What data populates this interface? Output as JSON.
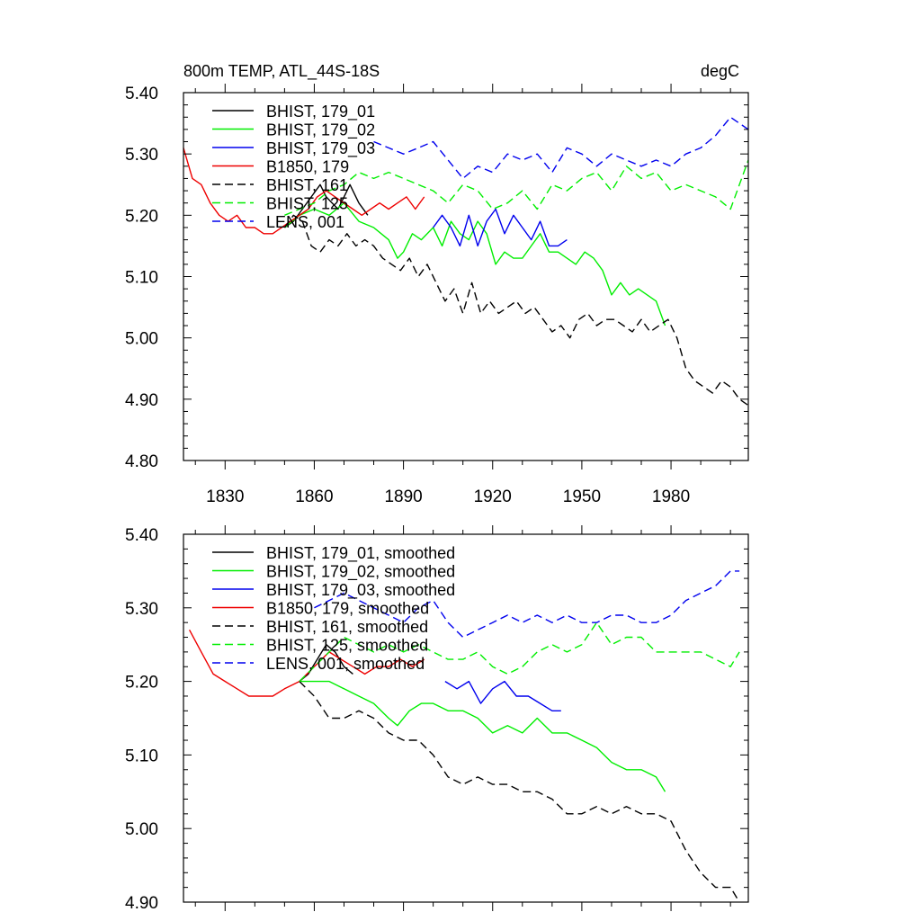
{
  "chart_data": [
    {
      "type": "line",
      "title": "800m TEMP, ATL_44S-18S",
      "units": "degC",
      "xlim": [
        1816,
        2006
      ],
      "ylim": [
        4.8,
        5.4
      ],
      "xticks": [
        1830,
        1860,
        1890,
        1920,
        1950,
        1980
      ],
      "xticklabels": [
        "1830",
        "1860",
        "1890",
        "1920",
        "1950",
        "1980"
      ],
      "yticks": [
        4.8,
        4.9,
        5.0,
        5.1,
        5.2,
        5.3,
        5.4
      ],
      "yticklabels": [
        "4.80",
        "4.90",
        "5.00",
        "5.10",
        "5.20",
        "5.30",
        "5.40"
      ],
      "legend_position": "top-left",
      "series": [
        {
          "name": "BHIST, 179_01",
          "color": "#000000",
          "dash": "solid",
          "x": [
            1850,
            1853,
            1856,
            1859,
            1862,
            1864,
            1866,
            1868,
            1870,
            1872,
            1875,
            1878
          ],
          "y": [
            5.18,
            5.19,
            5.21,
            5.23,
            5.25,
            5.23,
            5.22,
            5.21,
            5.23,
            5.25,
            5.22,
            5.2
          ]
        },
        {
          "name": "BHIST, 179_02",
          "color": "#00ee00",
          "dash": "solid",
          "x": [
            1850,
            1855,
            1860,
            1865,
            1870,
            1875,
            1880,
            1885,
            1888,
            1890,
            1893,
            1896,
            1900,
            1903,
            1906,
            1909,
            1912,
            1915,
            1918,
            1921,
            1924,
            1927,
            1930,
            1933,
            1936,
            1939,
            1942,
            1945,
            1948,
            1951,
            1954,
            1957,
            1960,
            1963,
            1966,
            1969,
            1972,
            1975,
            1978
          ],
          "y": [
            5.18,
            5.2,
            5.21,
            5.2,
            5.22,
            5.19,
            5.18,
            5.16,
            5.13,
            5.14,
            5.17,
            5.16,
            5.18,
            5.15,
            5.19,
            5.17,
            5.16,
            5.19,
            5.17,
            5.12,
            5.14,
            5.13,
            5.13,
            5.15,
            5.17,
            5.14,
            5.14,
            5.13,
            5.12,
            5.14,
            5.13,
            5.11,
            5.07,
            5.09,
            5.07,
            5.08,
            5.07,
            5.06,
            5.02
          ]
        },
        {
          "name": "BHIST, 179_03",
          "color": "#0000ee",
          "dash": "solid",
          "x": [
            1900,
            1903,
            1906,
            1909,
            1912,
            1915,
            1918,
            1921,
            1924,
            1927,
            1930,
            1933,
            1936,
            1939,
            1942,
            1945
          ],
          "y": [
            5.18,
            5.2,
            5.18,
            5.15,
            5.2,
            5.15,
            5.19,
            5.21,
            5.17,
            5.2,
            5.18,
            5.16,
            5.19,
            5.15,
            5.15,
            5.16
          ]
        },
        {
          "name": "B1850, 179",
          "color": "#ee0000",
          "dash": "solid",
          "x": [
            1816,
            1819,
            1822,
            1825,
            1828,
            1831,
            1834,
            1837,
            1840,
            1843,
            1846,
            1849,
            1852,
            1855,
            1858,
            1861,
            1864,
            1867,
            1870,
            1873,
            1876,
            1879,
            1882,
            1885,
            1888,
            1891,
            1894,
            1897
          ],
          "y": [
            5.31,
            5.26,
            5.25,
            5.22,
            5.2,
            5.19,
            5.2,
            5.18,
            5.18,
            5.17,
            5.17,
            5.18,
            5.19,
            5.2,
            5.21,
            5.23,
            5.24,
            5.23,
            5.22,
            5.21,
            5.2,
            5.21,
            5.22,
            5.21,
            5.22,
            5.23,
            5.21,
            5.23
          ]
        },
        {
          "name": "BHIST, 161",
          "color": "#000000",
          "dash": "dash",
          "x": [
            1850,
            1853,
            1856,
            1859,
            1862,
            1865,
            1868,
            1871,
            1874,
            1877,
            1880,
            1883,
            1886,
            1889,
            1892,
            1895,
            1898,
            1901,
            1904,
            1907,
            1910,
            1913,
            1916,
            1919,
            1922,
            1925,
            1928,
            1931,
            1934,
            1937,
            1940,
            1943,
            1946,
            1949,
            1952,
            1955,
            1958,
            1961,
            1964,
            1967,
            1970,
            1973,
            1976,
            1979,
            1982,
            1985,
            1988,
            1991,
            1994,
            1997,
            2000,
            2003,
            2006
          ],
          "y": [
            5.18,
            5.2,
            5.19,
            5.15,
            5.14,
            5.16,
            5.15,
            5.17,
            5.15,
            5.16,
            5.15,
            5.13,
            5.12,
            5.11,
            5.13,
            5.1,
            5.12,
            5.09,
            5.06,
            5.08,
            5.04,
            5.09,
            5.04,
            5.06,
            5.04,
            5.05,
            5.06,
            5.04,
            5.05,
            5.03,
            5.01,
            5.02,
            5.0,
            5.03,
            5.04,
            5.02,
            5.03,
            5.03,
            5.02,
            5.01,
            5.03,
            5.01,
            5.02,
            5.03,
            5.0,
            4.95,
            4.93,
            4.92,
            4.91,
            4.93,
            4.92,
            4.9,
            4.89
          ]
        },
        {
          "name": "BHIST, 125",
          "color": "#00ee00",
          "dash": "dash",
          "x": [
            1850,
            1855,
            1860,
            1865,
            1870,
            1875,
            1880,
            1885,
            1890,
            1895,
            1900,
            1905,
            1910,
            1915,
            1920,
            1925,
            1930,
            1935,
            1940,
            1945,
            1950,
            1955,
            1960,
            1965,
            1970,
            1975,
            1980,
            1985,
            1990,
            1995,
            2000,
            2003,
            2006
          ],
          "y": [
            5.2,
            5.21,
            5.22,
            5.24,
            5.25,
            5.27,
            5.26,
            5.27,
            5.26,
            5.25,
            5.24,
            5.22,
            5.25,
            5.24,
            5.21,
            5.22,
            5.24,
            5.21,
            5.25,
            5.24,
            5.26,
            5.27,
            5.24,
            5.28,
            5.26,
            5.27,
            5.24,
            5.25,
            5.24,
            5.23,
            5.21,
            5.25,
            5.29
          ]
        },
        {
          "name": "LENS, 001",
          "color": "#0000ee",
          "dash": "dash",
          "x": [
            1880,
            1885,
            1890,
            1895,
            1900,
            1905,
            1910,
            1915,
            1920,
            1925,
            1930,
            1935,
            1940,
            1945,
            1950,
            1955,
            1960,
            1965,
            1970,
            1975,
            1980,
            1985,
            1990,
            1995,
            2000,
            2003,
            2006
          ],
          "y": [
            5.32,
            5.31,
            5.3,
            5.31,
            5.32,
            5.29,
            5.26,
            5.28,
            5.27,
            5.3,
            5.29,
            5.3,
            5.27,
            5.31,
            5.3,
            5.28,
            5.3,
            5.29,
            5.28,
            5.29,
            5.28,
            5.3,
            5.31,
            5.33,
            5.36,
            5.35,
            5.34
          ]
        }
      ]
    },
    {
      "type": "line",
      "xlim": [
        1816,
        2006
      ],
      "ylim": [
        4.9,
        5.4
      ],
      "yticks": [
        4.9,
        5.0,
        5.1,
        5.2,
        5.3,
        5.4
      ],
      "yticklabels": [
        "4.90",
        "5.00",
        "5.10",
        "5.20",
        "5.30",
        "5.40"
      ],
      "legend_position": "top-left",
      "series": [
        {
          "name": "BHIST, 179_01, smoothed",
          "color": "#000000",
          "dash": "solid",
          "x": [
            1855,
            1858,
            1861,
            1864,
            1867,
            1870,
            1873
          ],
          "y": [
            5.2,
            5.21,
            5.23,
            5.25,
            5.24,
            5.22,
            5.21
          ]
        },
        {
          "name": "BHIST, 179_02, smoothed",
          "color": "#00ee00",
          "dash": "solid",
          "x": [
            1855,
            1860,
            1865,
            1870,
            1875,
            1880,
            1885,
            1888,
            1892,
            1896,
            1900,
            1905,
            1910,
            1915,
            1920,
            1925,
            1930,
            1935,
            1940,
            1945,
            1950,
            1955,
            1960,
            1965,
            1970,
            1975,
            1978
          ],
          "y": [
            5.2,
            5.2,
            5.2,
            5.19,
            5.18,
            5.17,
            5.15,
            5.14,
            5.16,
            5.17,
            5.17,
            5.16,
            5.16,
            5.15,
            5.13,
            5.14,
            5.13,
            5.15,
            5.13,
            5.13,
            5.12,
            5.11,
            5.09,
            5.08,
            5.08,
            5.07,
            5.05
          ]
        },
        {
          "name": "BHIST, 179_03, smoothed",
          "color": "#0000ee",
          "dash": "solid",
          "x": [
            1904,
            1908,
            1912,
            1916,
            1920,
            1924,
            1928,
            1932,
            1936,
            1940,
            1943
          ],
          "y": [
            5.2,
            5.19,
            5.2,
            5.17,
            5.19,
            5.2,
            5.18,
            5.18,
            5.17,
            5.16,
            5.16
          ]
        },
        {
          "name": "B1850, 179, smoothed",
          "color": "#ee0000",
          "dash": "solid",
          "x": [
            1818,
            1822,
            1826,
            1830,
            1834,
            1838,
            1842,
            1846,
            1850,
            1855,
            1860,
            1865,
            1869,
            1873,
            1877,
            1881,
            1885,
            1889,
            1893,
            1897
          ],
          "y": [
            5.27,
            5.24,
            5.21,
            5.2,
            5.19,
            5.18,
            5.18,
            5.18,
            5.19,
            5.2,
            5.22,
            5.24,
            5.23,
            5.22,
            5.21,
            5.22,
            5.22,
            5.23,
            5.22,
            5.23
          ]
        },
        {
          "name": "BHIST, 161, smoothed",
          "color": "#000000",
          "dash": "dash",
          "x": [
            1855,
            1860,
            1865,
            1870,
            1875,
            1880,
            1885,
            1890,
            1895,
            1900,
            1905,
            1910,
            1915,
            1920,
            1925,
            1930,
            1935,
            1940,
            1945,
            1950,
            1955,
            1960,
            1965,
            1970,
            1975,
            1980,
            1985,
            1990,
            1995,
            2000,
            2003
          ],
          "y": [
            5.2,
            5.18,
            5.15,
            5.15,
            5.16,
            5.15,
            5.13,
            5.12,
            5.12,
            5.1,
            5.07,
            5.06,
            5.07,
            5.06,
            5.06,
            5.05,
            5.05,
            5.04,
            5.02,
            5.02,
            5.03,
            5.02,
            5.03,
            5.02,
            5.02,
            5.01,
            4.97,
            4.94,
            4.92,
            4.92,
            4.9
          ]
        },
        {
          "name": "BHIST, 125, smoothed",
          "color": "#00ee00",
          "dash": "dash",
          "x": [
            1855,
            1860,
            1865,
            1870,
            1875,
            1880,
            1885,
            1890,
            1895,
            1900,
            1905,
            1910,
            1915,
            1920,
            1925,
            1930,
            1935,
            1940,
            1945,
            1950,
            1955,
            1960,
            1965,
            1970,
            1975,
            1980,
            1985,
            1990,
            1995,
            2000,
            2003
          ],
          "y": [
            5.2,
            5.22,
            5.24,
            5.26,
            5.25,
            5.24,
            5.25,
            5.24,
            5.25,
            5.24,
            5.23,
            5.23,
            5.24,
            5.22,
            5.21,
            5.22,
            5.24,
            5.25,
            5.24,
            5.25,
            5.28,
            5.25,
            5.26,
            5.26,
            5.24,
            5.24,
            5.24,
            5.24,
            5.23,
            5.22,
            5.24
          ]
        },
        {
          "name": "LENS, 001, smoothed",
          "color": "#0000ee",
          "dash": "dash",
          "x": [
            1860,
            1865,
            1870,
            1875,
            1880,
            1885,
            1890,
            1895,
            1900,
            1905,
            1910,
            1915,
            1920,
            1925,
            1930,
            1935,
            1940,
            1945,
            1950,
            1955,
            1960,
            1965,
            1970,
            1975,
            1980,
            1985,
            1990,
            1995,
            2000,
            2003
          ],
          "y": [
            5.3,
            5.31,
            5.32,
            5.31,
            5.3,
            5.29,
            5.28,
            5.3,
            5.31,
            5.28,
            5.26,
            5.27,
            5.28,
            5.29,
            5.28,
            5.29,
            5.28,
            5.29,
            5.28,
            5.28,
            5.29,
            5.29,
            5.28,
            5.28,
            5.29,
            5.31,
            5.32,
            5.33,
            5.35,
            5.35
          ]
        }
      ]
    }
  ]
}
